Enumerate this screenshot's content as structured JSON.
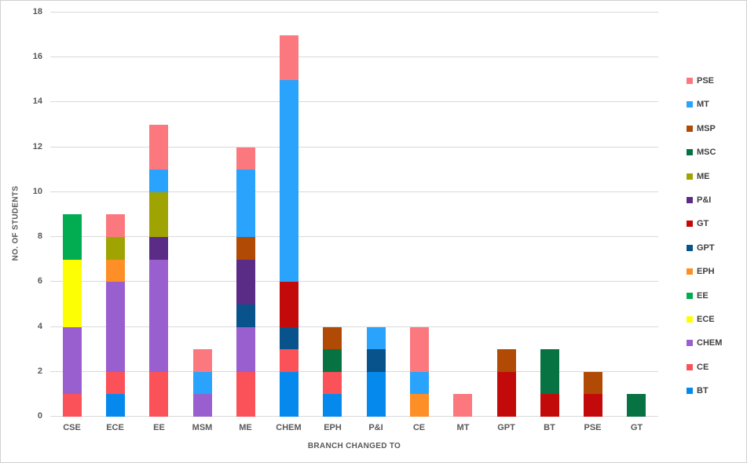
{
  "chart_data": {
    "type": "bar",
    "stacked": true,
    "title": "",
    "xlabel": "BRANCH CHANGED TO",
    "ylabel": "NO. OF STUDENTS",
    "ylim": [
      0,
      18
    ],
    "ytick_step": 2,
    "grid": true,
    "legend_position": "right",
    "categories": [
      "CSE",
      "ECE",
      "EE",
      "MSM",
      "ME",
      "CHEM",
      "EPH",
      "P&I",
      "CE",
      "MT",
      "GPT",
      "BT",
      "PSE",
      "GT"
    ],
    "series": [
      {
        "name": "BT",
        "color": "#0589EC",
        "values": [
          0,
          1,
          0,
          0,
          0,
          2,
          1,
          2,
          0,
          0,
          0,
          0,
          0,
          0
        ]
      },
      {
        "name": "CE",
        "color": "#FB5158",
        "values": [
          1,
          1,
          2,
          0,
          2,
          1,
          1,
          0,
          0,
          0,
          0,
          0,
          0,
          0
        ]
      },
      {
        "name": "CHEM",
        "color": "#9A5FCE",
        "values": [
          3,
          4,
          5,
          1,
          2,
          0,
          0,
          0,
          0,
          0,
          0,
          0,
          0,
          0
        ]
      },
      {
        "name": "ECE",
        "color": "#FDFE03",
        "values": [
          3,
          0,
          0,
          0,
          0,
          0,
          0,
          0,
          0,
          0,
          0,
          0,
          0,
          0
        ]
      },
      {
        "name": "EE",
        "color": "#02AC50",
        "values": [
          2,
          0,
          0,
          0,
          0,
          0,
          0,
          0,
          0,
          0,
          0,
          0,
          0,
          0
        ]
      },
      {
        "name": "EPH",
        "color": "#FE8E26",
        "values": [
          0,
          1,
          0,
          0,
          0,
          0,
          0,
          0,
          1,
          0,
          0,
          0,
          0,
          0
        ]
      },
      {
        "name": "GPT",
        "color": "#09538C",
        "values": [
          0,
          0,
          0,
          0,
          1,
          1,
          0,
          1,
          0,
          0,
          0,
          0,
          0,
          0
        ]
      },
      {
        "name": "GT",
        "color": "#C30A0A",
        "values": [
          0,
          0,
          0,
          0,
          0,
          2,
          0,
          0,
          0,
          0,
          2,
          1,
          1,
          0
        ]
      },
      {
        "name": "P&I",
        "color": "#5B2C86",
        "values": [
          0,
          0,
          1,
          0,
          2,
          0,
          0,
          0,
          0,
          0,
          0,
          0,
          0,
          0
        ]
      },
      {
        "name": "ME",
        "color": "#A0A402",
        "values": [
          0,
          1,
          2,
          0,
          0,
          0,
          0,
          0,
          0,
          0,
          0,
          0,
          0,
          0
        ]
      },
      {
        "name": "MSC",
        "color": "#077342",
        "values": [
          0,
          0,
          0,
          0,
          0,
          0,
          1,
          0,
          0,
          0,
          0,
          2,
          0,
          1
        ]
      },
      {
        "name": "MSP",
        "color": "#B04A04",
        "values": [
          0,
          0,
          0,
          0,
          1,
          0,
          1,
          0,
          0,
          0,
          1,
          0,
          1,
          0
        ]
      },
      {
        "name": "MT",
        "color": "#29A3FB",
        "values": [
          0,
          0,
          1,
          1,
          3,
          9,
          0,
          1,
          1,
          0,
          0,
          0,
          0,
          0
        ]
      },
      {
        "name": "PSE",
        "color": "#FB797E",
        "values": [
          0,
          1,
          2,
          1,
          1,
          2,
          0,
          0,
          2,
          1,
          0,
          0,
          0,
          0
        ]
      }
    ],
    "totals": {
      "CSE": 9,
      "ECE": 9,
      "EE": 13,
      "MSM": 3,
      "ME": 12,
      "CHEM": 17,
      "EPH": 4,
      "P&I": 4,
      "CE": 4,
      "MT": 1,
      "GPT": 3,
      "BT": 3,
      "PSE": 2,
      "GT": 1
    },
    "legend_order_top_to_bottom": [
      "PSE",
      "MT",
      "MSP",
      "MSC",
      "ME",
      "P&I",
      "GT",
      "GPT",
      "EPH",
      "EE",
      "ECE",
      "CHEM",
      "CE",
      "BT"
    ],
    "ytick_labels": [
      "0",
      "2",
      "4",
      "6",
      "8",
      "10",
      "12",
      "14",
      "16",
      "18"
    ]
  },
  "colors": {
    "background": "#FFFFFF",
    "border": "#D3D0D0",
    "gridline": "#D9D9D9",
    "tick_label": "#595959",
    "axis_title": "#595959",
    "legend_label": "#404040"
  }
}
